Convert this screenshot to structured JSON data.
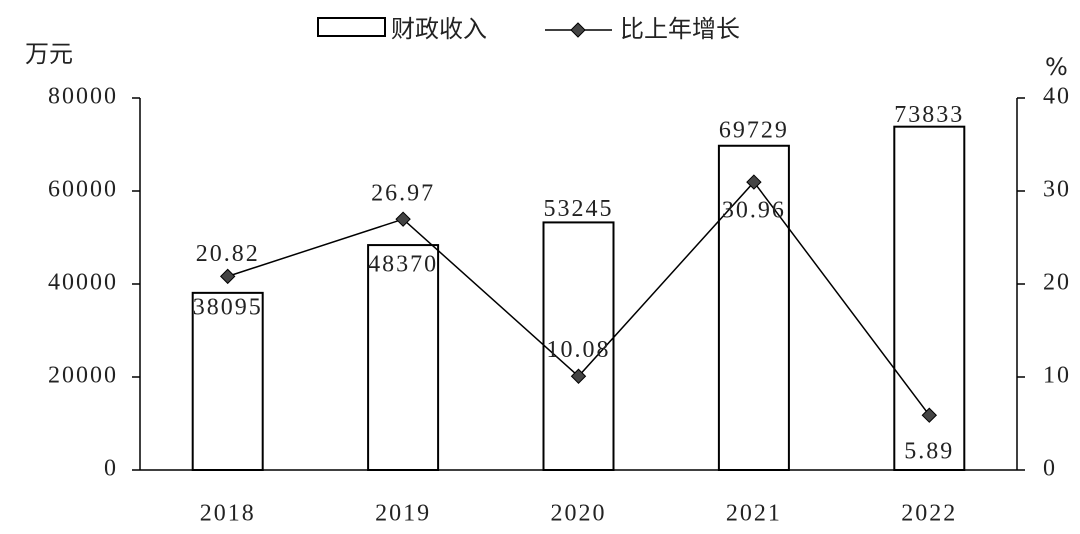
{
  "chart_data": {
    "type": "bar",
    "y_label": "万元",
    "y2_label": "%",
    "categories": [
      "2018",
      "2019",
      "2020",
      "2021",
      "2022"
    ],
    "series": [
      {
        "name": "财政收入",
        "type": "bar",
        "color": "#ffffff",
        "values": [
          38095,
          48370,
          53245,
          69729,
          73833
        ]
      },
      {
        "name": "比上年增长",
        "type": "line",
        "axis": "y2",
        "color": "#000000",
        "values": [
          20.82,
          26.97,
          10.08,
          30.96,
          5.89
        ]
      }
    ],
    "ylim": [
      0,
      80000
    ],
    "yticks": [
      0,
      20000,
      40000,
      60000,
      80000
    ],
    "y2lim": [
      0,
      40
    ],
    "y2ticks": [
      0,
      10,
      20,
      30,
      40
    ]
  }
}
